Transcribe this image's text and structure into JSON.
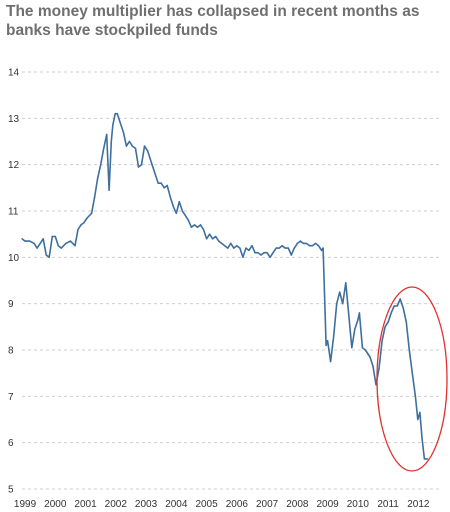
{
  "chart_data": {
    "type": "line",
    "title": "The money multiplier has collapsed in recent months as banks have stockpiled funds",
    "xlabel": "",
    "ylabel": "",
    "ylim": [
      5,
      14
    ],
    "xlim": [
      1999,
      2012.55
    ],
    "grid": "horizontal dashed",
    "y_ticks": [
      5,
      6,
      7,
      8,
      9,
      10,
      11,
      12,
      13,
      14
    ],
    "x_ticks": [
      "1999",
      "2000",
      "2001",
      "2002",
      "2003",
      "2004",
      "2005",
      "2006",
      "2007",
      "2008",
      "2009",
      "2010",
      "2011",
      "2012"
    ],
    "line_color": "#3f6f9e",
    "annotation_color": "#e03030",
    "series": [
      {
        "x": [
          1999.0,
          1999.1,
          1999.25,
          1999.4,
          1999.5,
          1999.6,
          1999.7,
          1999.8,
          1999.9,
          2000.0,
          2000.1,
          2000.2,
          2000.3,
          2000.45,
          2000.6,
          2000.75,
          2000.85,
          2000.95,
          2001.05,
          2001.15,
          2001.3,
          2001.4,
          2001.5,
          2001.6,
          2001.7,
          2001.8,
          2001.88,
          2001.95,
          2002.0,
          2002.08,
          2002.15,
          2002.25,
          2002.35,
          2002.45,
          2002.55,
          2002.65,
          2002.75,
          2002.85,
          2002.95,
          2003.05,
          2003.15,
          2003.3,
          2003.4,
          2003.5,
          2003.6,
          2003.7,
          2003.8,
          2003.9,
          2004.0,
          2004.1,
          2004.2,
          2004.3,
          2004.4,
          2004.5,
          2004.6,
          2004.7,
          2004.8,
          2004.9,
          2005.0,
          2005.1,
          2005.2,
          2005.3,
          2005.4,
          2005.5,
          2005.6,
          2005.7,
          2005.8,
          2005.9,
          2006.0,
          2006.1,
          2006.2,
          2006.3,
          2006.4,
          2006.5,
          2006.6,
          2006.7,
          2006.8,
          2006.9,
          2007.0,
          2007.1,
          2007.2,
          2007.3,
          2007.4,
          2007.5,
          2007.6,
          2007.7,
          2007.8,
          2007.9,
          2008.0,
          2008.1,
          2008.2,
          2008.3,
          2008.4,
          2008.5,
          2008.6,
          2008.7,
          2008.8,
          2008.9,
          2008.95,
          2009.05,
          2009.1,
          2009.2,
          2009.3,
          2009.4,
          2009.5,
          2009.6,
          2009.7,
          2009.8,
          2009.9,
          2010.0,
          2010.1,
          2010.15,
          2010.25,
          2010.35,
          2010.5,
          2010.6,
          2010.7,
          2010.8,
          2010.9,
          2011.0,
          2011.1,
          2011.2,
          2011.3,
          2011.4,
          2011.5,
          2011.6,
          2011.7,
          2011.8,
          2011.9,
          2012.0,
          2012.08,
          2012.15,
          2012.22,
          2012.3,
          2012.4
        ],
        "values": [
          10.4,
          10.35,
          10.35,
          10.3,
          10.2,
          10.3,
          10.4,
          10.05,
          10.0,
          10.45,
          10.45,
          10.25,
          10.2,
          10.3,
          10.35,
          10.25,
          10.6,
          10.7,
          10.75,
          10.85,
          10.95,
          11.3,
          11.7,
          12.0,
          12.35,
          12.65,
          11.45,
          12.5,
          12.85,
          13.1,
          13.1,
          12.9,
          12.7,
          12.4,
          12.5,
          12.4,
          12.35,
          11.95,
          12.0,
          12.4,
          12.3,
          12.0,
          11.8,
          11.6,
          11.6,
          11.5,
          11.55,
          11.3,
          11.1,
          10.95,
          11.2,
          11.0,
          10.9,
          10.8,
          10.65,
          10.7,
          10.65,
          10.7,
          10.6,
          10.4,
          10.5,
          10.4,
          10.45,
          10.35,
          10.3,
          10.25,
          10.2,
          10.3,
          10.2,
          10.25,
          10.2,
          10.0,
          10.2,
          10.15,
          10.25,
          10.1,
          10.1,
          10.05,
          10.1,
          10.1,
          10.0,
          10.1,
          10.2,
          10.2,
          10.25,
          10.2,
          10.2,
          10.05,
          10.2,
          10.3,
          10.35,
          10.3,
          10.3,
          10.25,
          10.25,
          10.3,
          10.25,
          10.15,
          10.2,
          8.1,
          8.2,
          7.75,
          8.3,
          9.0,
          9.25,
          9.0,
          9.45,
          8.75,
          8.05,
          8.45,
          8.65,
          8.8,
          8.05,
          8.0,
          7.85,
          7.65,
          7.25,
          7.6,
          8.2,
          8.5,
          8.6,
          8.8,
          8.95,
          8.95,
          9.1,
          8.9,
          8.6,
          8.0,
          7.5,
          7.0,
          6.5,
          6.65,
          6.1,
          5.65,
          5.65
        ]
      }
    ]
  }
}
